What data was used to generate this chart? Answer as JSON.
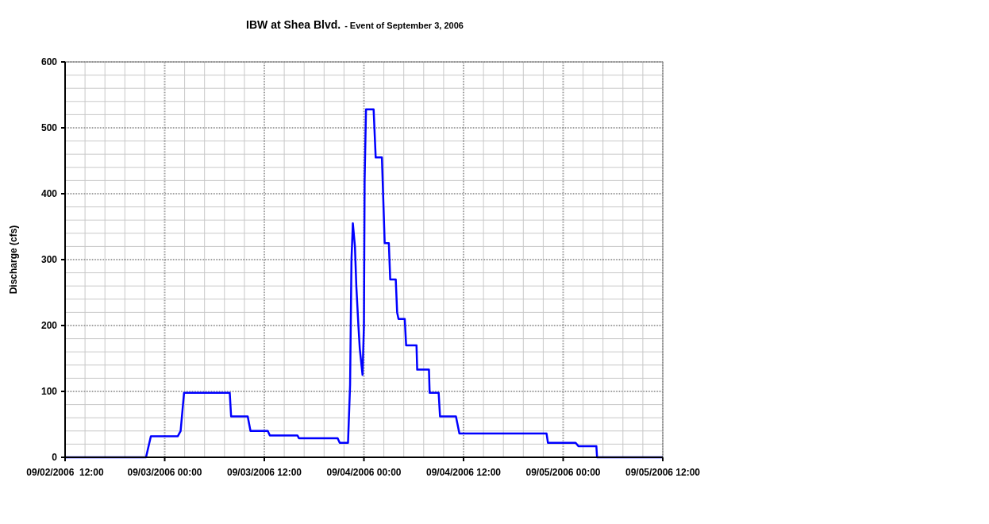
{
  "chart_data": {
    "type": "line",
    "title": "IBW at Shea Blvd.",
    "subtitle": "- Event of September 3, 2006",
    "ylabel": "Discharge (cfs)",
    "x": [
      "2006-09-02T12:00",
      "2006-09-02T21:45",
      "2006-09-02T22:20",
      "2006-09-03T01:35",
      "2006-09-03T01:55",
      "2006-09-03T02:20",
      "2006-09-03T07:50",
      "2006-09-03T08:00",
      "2006-09-03T10:00",
      "2006-09-03T10:20",
      "2006-09-03T12:25",
      "2006-09-03T12:40",
      "2006-09-03T16:00",
      "2006-09-03T16:10",
      "2006-09-03T20:50",
      "2006-09-03T21:05",
      "2006-09-03T22:05",
      "2006-09-03T22:20",
      "2006-09-03T22:30",
      "2006-09-03T22:40",
      "2006-09-03T22:55",
      "2006-09-03T23:05",
      "2006-09-03T23:20",
      "2006-09-03T23:30",
      "2006-09-03T23:50",
      "2006-09-04T00:00",
      "2006-09-04T00:05",
      "2006-09-04T00:15",
      "2006-09-04T01:10",
      "2006-09-04T01:25",
      "2006-09-04T02:10",
      "2006-09-04T02:30",
      "2006-09-04T03:00",
      "2006-09-04T03:10",
      "2006-09-04T03:50",
      "2006-09-04T04:00",
      "2006-09-04T04:10",
      "2006-09-04T04:55",
      "2006-09-04T05:05",
      "2006-09-04T06:20",
      "2006-09-04T06:25",
      "2006-09-04T07:50",
      "2006-09-04T07:55",
      "2006-09-04T09:00",
      "2006-09-04T09:10",
      "2006-09-04T11:05",
      "2006-09-04T11:30",
      "2006-09-04T22:00",
      "2006-09-04T22:10",
      "2006-09-05T01:30",
      "2006-09-05T01:50",
      "2006-09-05T04:00",
      "2006-09-05T04:05",
      "2006-09-05T12:00"
    ],
    "series": [
      {
        "color": "#0000ff",
        "values": [
          0,
          0,
          32,
          32,
          40,
          98,
          98,
          62,
          62,
          40,
          40,
          33,
          33,
          29,
          29,
          22,
          22,
          110,
          300,
          355,
          320,
          260,
          200,
          165,
          125,
          200,
          420,
          528,
          528,
          455,
          455,
          325,
          325,
          270,
          270,
          220,
          210,
          210,
          170,
          170,
          133,
          133,
          98,
          98,
          62,
          62,
          36,
          36,
          22,
          22,
          17,
          17,
          0,
          0
        ]
      }
    ],
    "xlim": [
      "2006-09-02T12:00",
      "2006-09-05T12:00"
    ],
    "xticks": [
      {
        "value": "2006-09-02T12:00",
        "label": "09/02/2006  12:00"
      },
      {
        "value": "2006-09-03T00:00",
        "label": "09/03/2006 00:00"
      },
      {
        "value": "2006-09-03T12:00",
        "label": "09/03/2006 12:00"
      },
      {
        "value": "2006-09-04T00:00",
        "label": "09/04/2006 00:00"
      },
      {
        "value": "2006-09-04T12:00",
        "label": "09/04/2006 12:00"
      },
      {
        "value": "2006-09-05T00:00",
        "label": "09/05/2006 00:00"
      },
      {
        "value": "2006-09-05T12:00",
        "label": "09/05/2006 12:00"
      }
    ],
    "ylim": [
      0,
      600
    ],
    "yticks": [
      0,
      100,
      200,
      300,
      400,
      500,
      600
    ],
    "grid": true,
    "marker": "none",
    "line_style": "solid"
  }
}
